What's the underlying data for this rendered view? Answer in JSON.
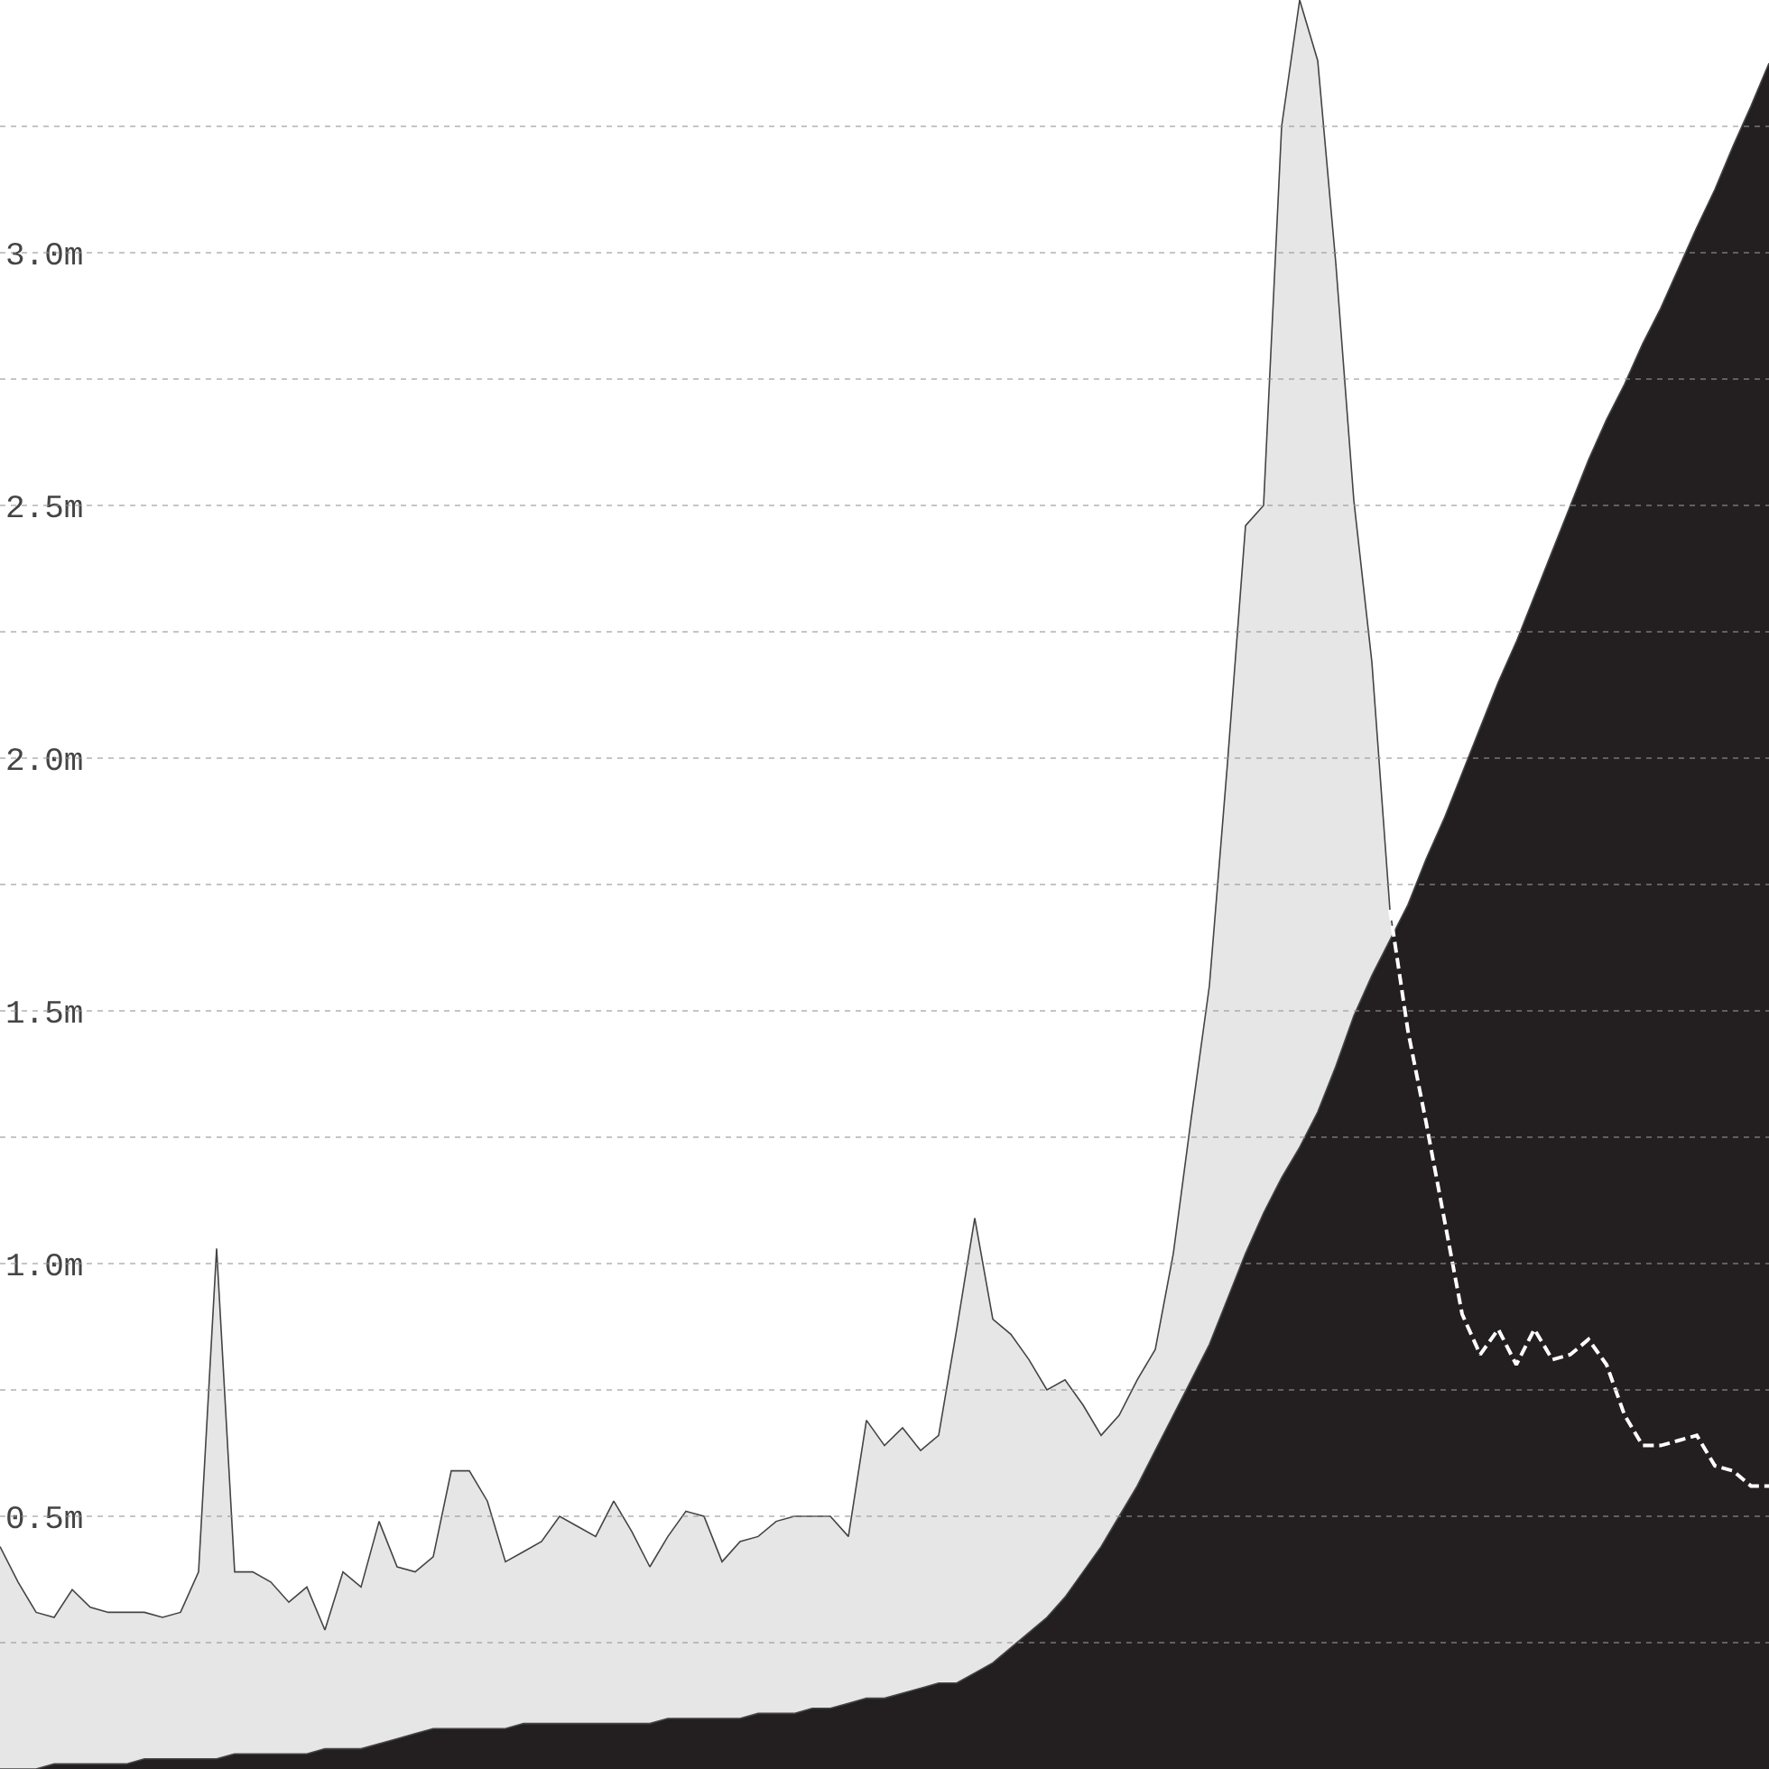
{
  "chart_data": {
    "type": "area",
    "tick_labels": "y",
    "grid": "y",
    "ylim": [
      0,
      3.5
    ],
    "categories": [
      null,
      null,
      null,
      null,
      null,
      null,
      null,
      null,
      null,
      null,
      null,
      null,
      null,
      null,
      null,
      null,
      null,
      null,
      null,
      null,
      null,
      null,
      null,
      null,
      null,
      null,
      null,
      null,
      null,
      null,
      null,
      null,
      null,
      null,
      null,
      null,
      null,
      null,
      null,
      null,
      null,
      null,
      null,
      null,
      null,
      null,
      null,
      null,
      null,
      null,
      null,
      null,
      null,
      null,
      null,
      null,
      null,
      null,
      null,
      null,
      null,
      null,
      null,
      null,
      null,
      null,
      null,
      null,
      null,
      null,
      null,
      null,
      null,
      null,
      null,
      null,
      null,
      null,
      null,
      null,
      null,
      null,
      null,
      null,
      null,
      null,
      null,
      null,
      null,
      null,
      null,
      null,
      null,
      null,
      null,
      null,
      null,
      null,
      null
    ],
    "yticks": [
      {
        "value": 0.25,
        "label": null
      },
      {
        "value": 0.5,
        "label": "0.5m"
      },
      {
        "value": 0.75,
        "label": null
      },
      {
        "value": 1.0,
        "label": "1.0m"
      },
      {
        "value": 1.25,
        "label": null
      },
      {
        "value": 1.5,
        "label": "1.5m"
      },
      {
        "value": 1.75,
        "label": null
      },
      {
        "value": 2.0,
        "label": "2.0m"
      },
      {
        "value": 2.25,
        "label": null
      },
      {
        "value": 2.5,
        "label": "2.5m"
      },
      {
        "value": 2.75,
        "label": null
      },
      {
        "value": 3.0,
        "label": "3.0m"
      },
      {
        "value": 3.25,
        "label": null
      }
    ],
    "series": [
      {
        "color": "#e6e6e6",
        "values": [
          0.44,
          0.37,
          0.31,
          0.3,
          0.355,
          0.32,
          0.31,
          0.31,
          0.31,
          0.3,
          0.31,
          0.39,
          1.03,
          0.39,
          0.39,
          0.37,
          0.33,
          0.36,
          0.275,
          0.39,
          0.36,
          0.49,
          0.4,
          0.39,
          0.42,
          0.59,
          0.59,
          0.53,
          0.41,
          0.43,
          0.45,
          0.5,
          0.48,
          0.46,
          0.53,
          0.47,
          0.4,
          0.46,
          0.51,
          0.5,
          0.41,
          0.45,
          0.46,
          0.49,
          0.5,
          0.5,
          0.5,
          0.46,
          0.69,
          0.64,
          0.675,
          0.63,
          0.66,
          0.87,
          1.09,
          0.89,
          0.86,
          0.81,
          0.75,
          0.77,
          0.72,
          0.66,
          0.7,
          0.77,
          0.83,
          1.02,
          1.29,
          1.55,
          1.99,
          2.46,
          2.5,
          3.25,
          3.5,
          3.38,
          2.98,
          2.51,
          2.19,
          1.7,
          1.46,
          1.28,
          1.09,
          0.9,
          0.82,
          0.87,
          0.8,
          0.87,
          0.81,
          0.82,
          0.85,
          0.8,
          0.7,
          0.64,
          0.64,
          0.65,
          0.66,
          0.6,
          0.59,
          0.56,
          0.56
        ]
      },
      {
        "color": "#231f20",
        "values": [
          0,
          0,
          0,
          0.01,
          0.01,
          0.01,
          0.01,
          0.01,
          0.02,
          0.02,
          0.02,
          0.02,
          0.02,
          0.03,
          0.03,
          0.03,
          0.03,
          0.03,
          0.04,
          0.04,
          0.04,
          0.05,
          0.06,
          0.07,
          0.08,
          0.08,
          0.08,
          0.08,
          0.08,
          0.09,
          0.09,
          0.09,
          0.09,
          0.09,
          0.09,
          0.09,
          0.09,
          0.1,
          0.1,
          0.1,
          0.1,
          0.1,
          0.11,
          0.11,
          0.11,
          0.12,
          0.12,
          0.13,
          0.14,
          0.14,
          0.15,
          0.16,
          0.17,
          0.17,
          0.19,
          0.21,
          0.24,
          0.27,
          0.3,
          0.34,
          0.39,
          0.44,
          0.5,
          0.56,
          0.63,
          0.7,
          0.77,
          0.84,
          0.93,
          1.02,
          1.1,
          1.17,
          1.23,
          1.3,
          1.39,
          1.49,
          1.57,
          1.64,
          1.71,
          1.8,
          1.88,
          1.97,
          2.06,
          2.15,
          2.23,
          2.32,
          2.41,
          2.5,
          2.59,
          2.67,
          2.74,
          2.82,
          2.89,
          2.97,
          3.05,
          3.125,
          3.21,
          3.29,
          3.375
        ]
      }
    ]
  }
}
